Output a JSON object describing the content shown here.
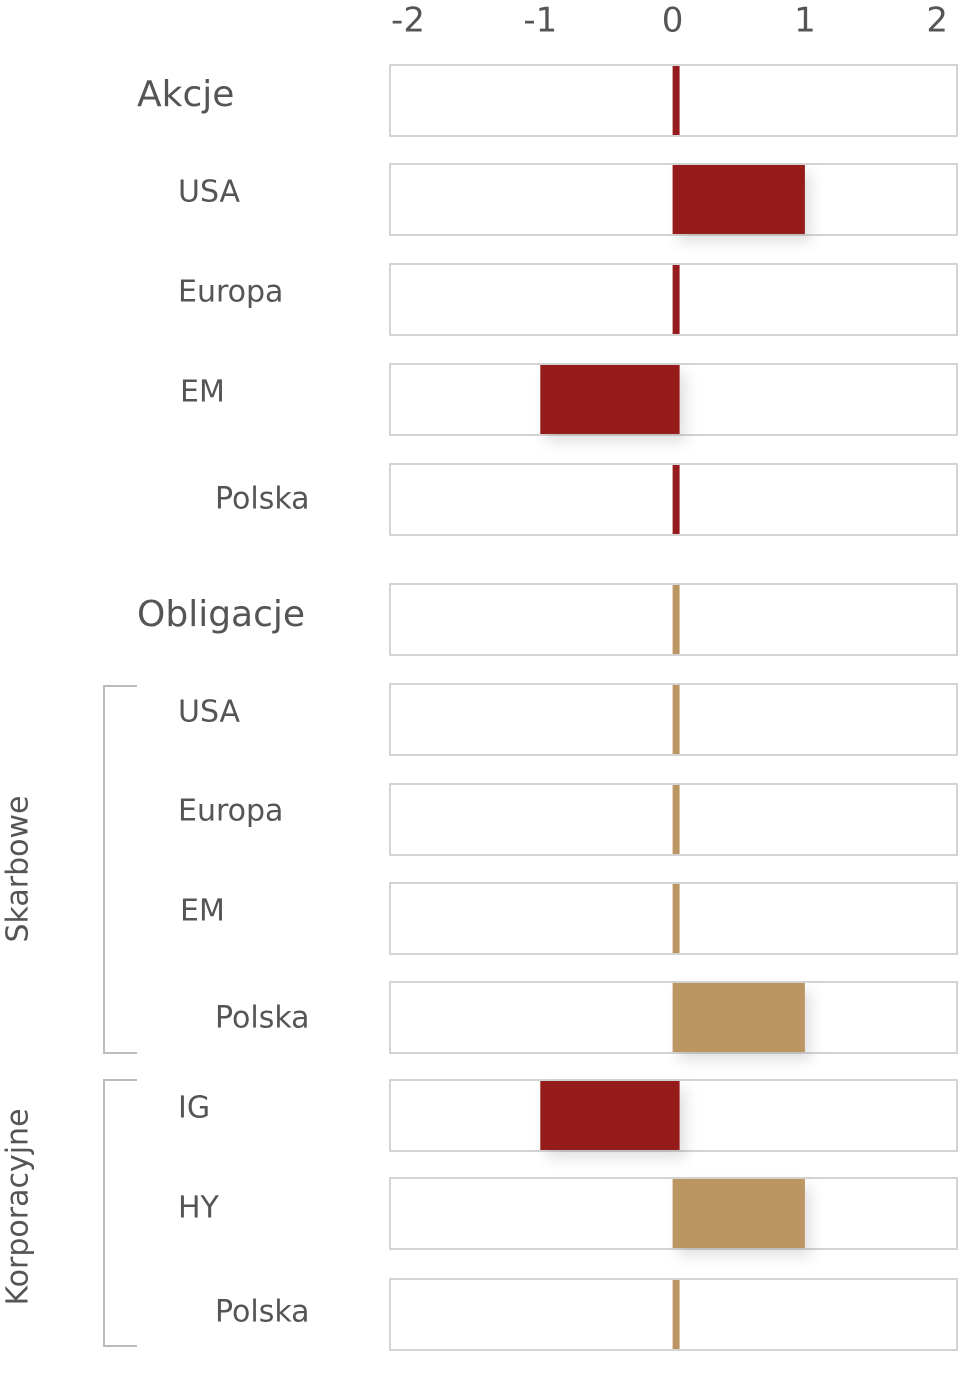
{
  "chart_data": {
    "type": "bar",
    "categories": [
      "Akcje",
      "USA",
      "Europa",
      "EM",
      "Polska",
      "Obligacje",
      "USA",
      "Europa",
      "EM",
      "Polska",
      "IG",
      "HY",
      "Polska"
    ],
    "values": [
      0,
      1,
      0,
      -1,
      0,
      0,
      0,
      0,
      0,
      1,
      -1,
      1,
      0
    ],
    "colors": [
      "#961b1f",
      "#961b1f",
      "#961b1f",
      "#961b1f",
      "#961b1f",
      "#bb9662",
      "#bb9662",
      "#bb9662",
      "#bb9662",
      "#bb9662",
      "#961b1f",
      "#bb9662",
      "#bb9662"
    ],
    "brackets": [
      {
        "label": "Skarbowe"
      },
      {
        "label": "Korporacyjne"
      }
    ],
    "xlim": [
      -2.1,
      2.15
    ],
    "xticks": [
      -2,
      -1,
      0,
      1,
      2
    ]
  }
}
